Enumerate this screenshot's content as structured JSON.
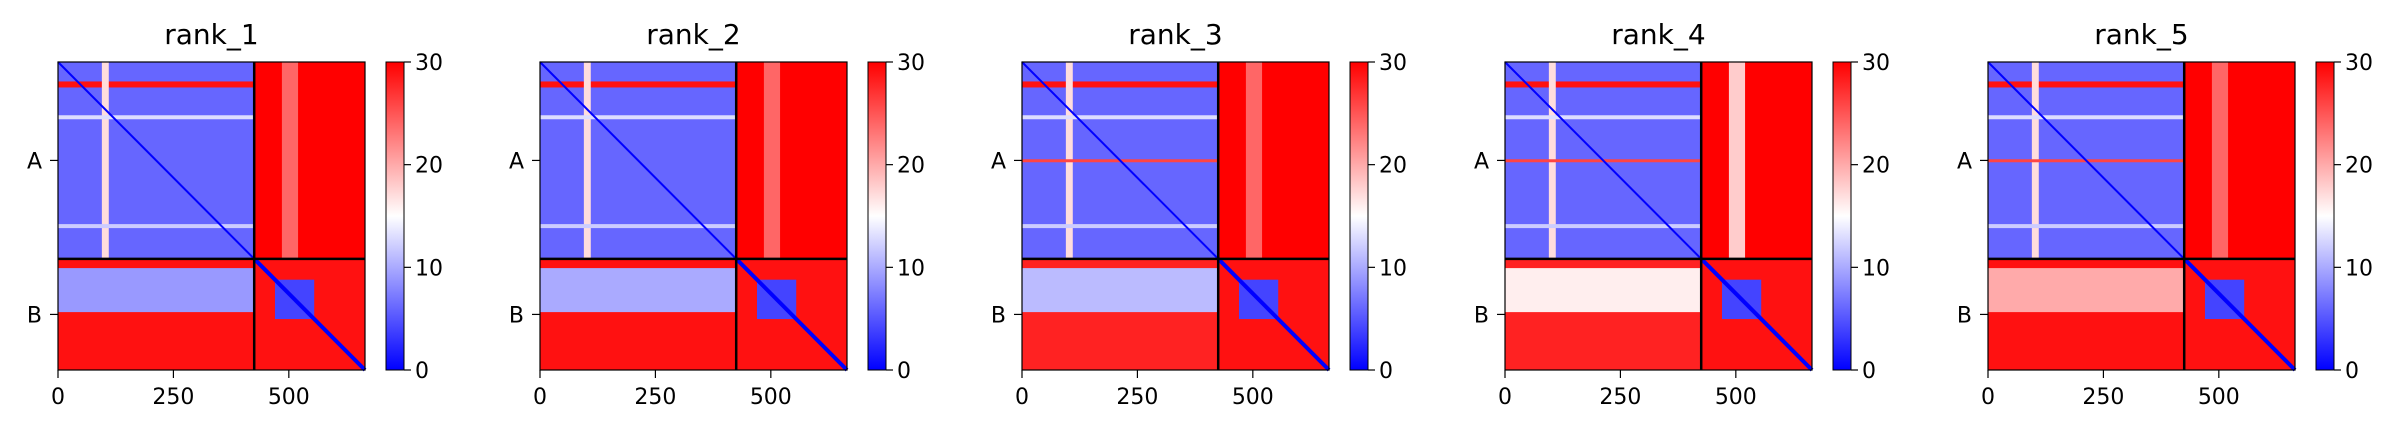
{
  "figure": {
    "colors": {
      "low": "#0000ff",
      "mid": "#ffffff",
      "high": "#ff0000",
      "boundary": "#000000"
    }
  },
  "chart_data": [
    {
      "type": "heatmap",
      "title": "rank_1",
      "x_ticks": [
        0,
        250,
        500
      ],
      "y_tick_labels": [
        "A",
        "B"
      ],
      "chains": [
        {
          "name": "A",
          "start": 0,
          "end": 425
        },
        {
          "name": "B",
          "start": 425,
          "end": 665
        }
      ],
      "matrix_range": [
        0,
        665
      ],
      "colorbar": {
        "ticks": [
          0,
          10,
          20,
          30
        ],
        "vmin": 0,
        "vmax": 30,
        "cmap": "bwr"
      },
      "approx_blocks": {
        "A_A": 6,
        "B_B_core": 4,
        "A_B": 30,
        "B_A_inner": 9,
        "B_A_outer": 29
      }
    },
    {
      "type": "heatmap",
      "title": "rank_2",
      "x_ticks": [
        0,
        250,
        500
      ],
      "y_tick_labels": [
        "A",
        "B"
      ],
      "chains": [
        {
          "name": "A",
          "start": 0,
          "end": 425
        },
        {
          "name": "B",
          "start": 425,
          "end": 665
        }
      ],
      "matrix_range": [
        0,
        665
      ],
      "colorbar": {
        "ticks": [
          0,
          10,
          20,
          30
        ],
        "vmin": 0,
        "vmax": 30,
        "cmap": "bwr"
      },
      "approx_blocks": {
        "A_A": 6,
        "B_B_core": 4,
        "A_B": 30,
        "B_A_inner": 10,
        "B_A_outer": 29
      }
    },
    {
      "type": "heatmap",
      "title": "rank_3",
      "x_ticks": [
        0,
        250,
        500
      ],
      "y_tick_labels": [
        "A",
        "B"
      ],
      "chains": [
        {
          "name": "A",
          "start": 0,
          "end": 425
        },
        {
          "name": "B",
          "start": 425,
          "end": 665
        }
      ],
      "matrix_range": [
        0,
        665
      ],
      "colorbar": {
        "ticks": [
          0,
          10,
          20,
          30
        ],
        "vmin": 0,
        "vmax": 30,
        "cmap": "bwr"
      },
      "approx_blocks": {
        "A_A": 6,
        "B_B_core": 4,
        "A_B": 30,
        "B_A_inner": 11,
        "B_A_outer": 28
      }
    },
    {
      "type": "heatmap",
      "title": "rank_4",
      "x_ticks": [
        0,
        250,
        500
      ],
      "y_tick_labels": [
        "A",
        "B"
      ],
      "chains": [
        {
          "name": "A",
          "start": 0,
          "end": 425
        },
        {
          "name": "B",
          "start": 425,
          "end": 665
        }
      ],
      "matrix_range": [
        0,
        665
      ],
      "colorbar": {
        "ticks": [
          0,
          10,
          20,
          30
        ],
        "vmin": 0,
        "vmax": 30,
        "cmap": "bwr"
      },
      "approx_blocks": {
        "A_A": 6,
        "B_B_core": 4,
        "A_B": 30,
        "B_A_inner": 16,
        "B_A_outer": 28
      }
    },
    {
      "type": "heatmap",
      "title": "rank_5",
      "x_ticks": [
        0,
        250,
        500
      ],
      "y_tick_labels": [
        "A",
        "B"
      ],
      "chains": [
        {
          "name": "A",
          "start": 0,
          "end": 425
        },
        {
          "name": "B",
          "start": 425,
          "end": 665
        }
      ],
      "matrix_range": [
        0,
        665
      ],
      "colorbar": {
        "ticks": [
          0,
          10,
          20,
          30
        ],
        "vmin": 0,
        "vmax": 30,
        "cmap": "bwr"
      },
      "approx_blocks": {
        "A_A": 6,
        "B_B_core": 4,
        "A_B": 30,
        "B_A_inner": 20,
        "B_A_outer": 29
      }
    }
  ]
}
